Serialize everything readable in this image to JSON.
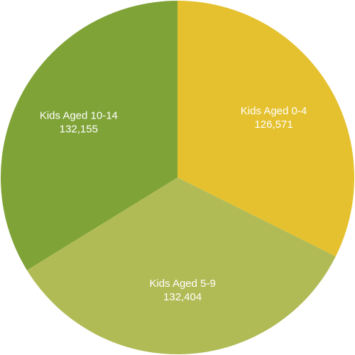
{
  "chart_data": {
    "type": "pie",
    "categories": [
      "Kids Aged 0-4",
      "Kids Aged 5-9",
      "Kids Aged 10-14"
    ],
    "values": [
      126571,
      132404,
      132155
    ],
    "value_labels": [
      "126,571",
      "132,404",
      "132,155"
    ],
    "colors": [
      "#e5c12f",
      "#b1bb55",
      "#7fa337"
    ]
  }
}
